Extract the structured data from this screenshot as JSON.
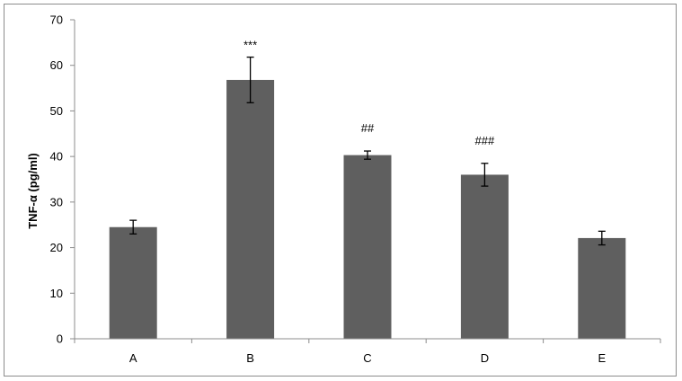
{
  "chart_data": {
    "type": "bar",
    "title": "",
    "xlabel": "",
    "ylabel": "TNF-α (pg/ml)",
    "categories": [
      "A",
      "B",
      "C",
      "D",
      "E"
    ],
    "values": [
      24.5,
      56.8,
      40.3,
      36.0,
      22.1
    ],
    "error": [
      1.5,
      5.0,
      0.9,
      2.5,
      1.5
    ],
    "annotations": [
      "",
      "***",
      "##",
      "###",
      ""
    ],
    "ylim": [
      0,
      70
    ],
    "yticks": [
      0,
      10,
      20,
      30,
      40,
      50,
      60,
      70
    ],
    "grid": false,
    "legend": "none",
    "colors": {
      "bar": "#5f5f5f",
      "axis": "#8c8c8c",
      "error": "#000000"
    }
  }
}
